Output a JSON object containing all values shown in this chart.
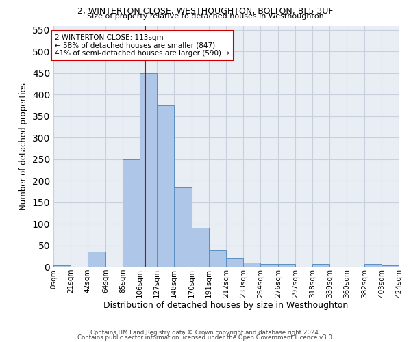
{
  "title": "2, WINTERTON CLOSE, WESTHOUGHTON, BOLTON, BL5 3UF",
  "subtitle": "Size of property relative to detached houses in Westhoughton",
  "xlabel": "Distribution of detached houses by size in Westhoughton",
  "ylabel": "Number of detached properties",
  "bar_color": "#aec6e8",
  "bar_edge_color": "#5a8fc0",
  "bin_edges": [
    0,
    21,
    42,
    64,
    85,
    106,
    127,
    148,
    170,
    191,
    212,
    233,
    254,
    276,
    297,
    318,
    339,
    360,
    382,
    403,
    424
  ],
  "bin_labels": [
    "0sqm",
    "21sqm",
    "42sqm",
    "64sqm",
    "85sqm",
    "106sqm",
    "127sqm",
    "148sqm",
    "170sqm",
    "191sqm",
    "212sqm",
    "233sqm",
    "254sqm",
    "276sqm",
    "297sqm",
    "318sqm",
    "339sqm",
    "360sqm",
    "382sqm",
    "403sqm",
    "424sqm"
  ],
  "bar_heights": [
    3,
    0,
    35,
    0,
    250,
    450,
    375,
    185,
    90,
    38,
    20,
    10,
    6,
    6,
    0,
    6,
    0,
    0,
    6,
    3
  ],
  "ylim": [
    0,
    560
  ],
  "yticks": [
    0,
    50,
    100,
    150,
    200,
    250,
    300,
    350,
    400,
    450,
    500,
    550
  ],
  "vline_x": 113,
  "vline_color": "#cc0000",
  "annotation_title": "2 WINTERTON CLOSE: 113sqm",
  "annotation_line1": "← 58% of detached houses are smaller (847)",
  "annotation_line2": "41% of semi-detached houses are larger (590) →",
  "annotation_box_color": "#ffffff",
  "annotation_box_edge": "#cc0000",
  "grid_color": "#c8d0dc",
  "background_color": "#e8eef4",
  "footer_line1": "Contains HM Land Registry data © Crown copyright and database right 2024.",
  "footer_line2": "Contains public sector information licensed under the Open Government Licence v3.0."
}
